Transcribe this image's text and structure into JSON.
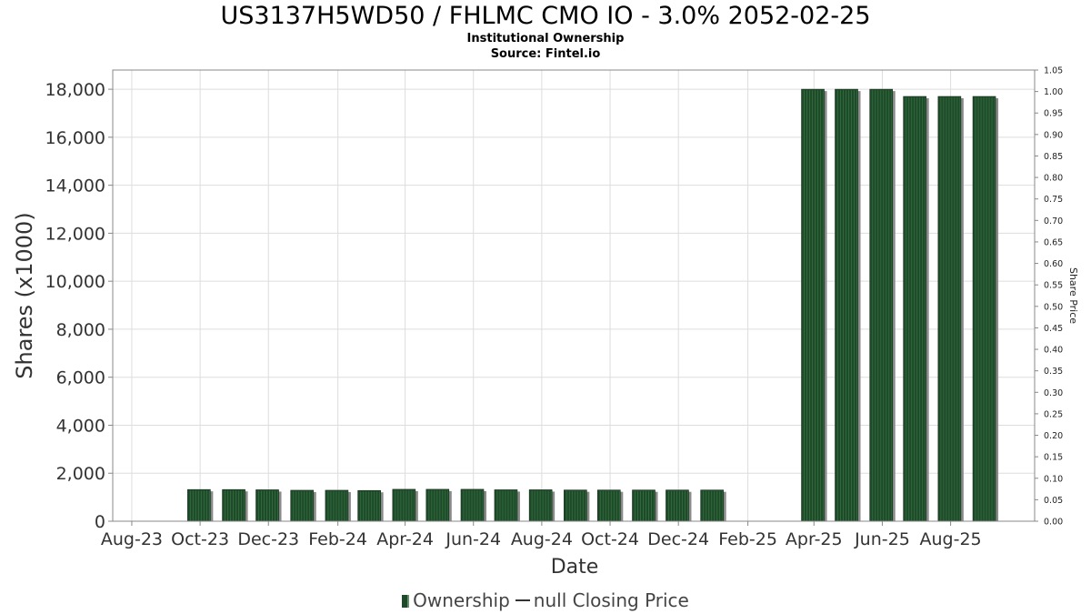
{
  "title": "US3137H5WD50 / FHLMC CMO IO - 3.0% 2052-02-25",
  "subtitle": "Institutional Ownership",
  "source": "Source: Fintel.io",
  "legend": {
    "ownership": "Ownership",
    "closing_price": "null Closing Price"
  },
  "colors": {
    "bar": "#1f4a2a",
    "bar_stripe": "#2f6a3c",
    "shadow": "#8a8a8a",
    "grid": "#dddddd"
  },
  "chart_data": {
    "type": "bar",
    "xlabel": "Date",
    "ylabel": "Shares (x1000)",
    "y2label": "Share Price",
    "ylim": [
      0,
      18800
    ],
    "y2lim": [
      0,
      1.05
    ],
    "yticks": [
      0,
      2000,
      4000,
      6000,
      8000,
      10000,
      12000,
      14000,
      16000,
      18000
    ],
    "ytick_labels": [
      "0",
      "2,000",
      "4,000",
      "6,000",
      "8,000",
      "10,000",
      "12,000",
      "14,000",
      "16,000",
      "18,000"
    ],
    "y2ticks": [
      "0.00",
      "0.05",
      "0.10",
      "0.15",
      "0.20",
      "0.25",
      "0.30",
      "0.35",
      "0.40",
      "0.45",
      "0.50",
      "0.55",
      "0.60",
      "0.65",
      "0.70",
      "0.75",
      "0.80",
      "0.85",
      "0.90",
      "0.95",
      "1.00",
      "1.05"
    ],
    "xticks": [
      "Aug-23",
      "Oct-23",
      "Dec-23",
      "Feb-24",
      "Apr-24",
      "Jun-24",
      "Aug-24",
      "Oct-24",
      "Dec-24",
      "Feb-25",
      "Apr-25",
      "Jun-25",
      "Aug-25"
    ],
    "grid": true,
    "legend_position": "bottom",
    "series": [
      {
        "name": "Ownership",
        "x": [
          "2023-09-30",
          "2023-10-31",
          "2023-11-30",
          "2023-12-31",
          "2024-01-31",
          "2024-02-29",
          "2024-03-31",
          "2024-04-30",
          "2024-05-31",
          "2024-06-30",
          "2024-07-31",
          "2024-08-31",
          "2024-09-30",
          "2024-10-31",
          "2024-11-30",
          "2024-12-31",
          "2025-03-31",
          "2025-04-30",
          "2025-05-31",
          "2025-06-30",
          "2025-07-31",
          "2025-08-31"
        ],
        "values": [
          1320,
          1320,
          1310,
          1290,
          1290,
          1280,
          1330,
          1330,
          1330,
          1310,
          1310,
          1300,
          1300,
          1300,
          1300,
          1300,
          18000,
          18000,
          18000,
          17700,
          17700,
          17700
        ]
      }
    ]
  }
}
